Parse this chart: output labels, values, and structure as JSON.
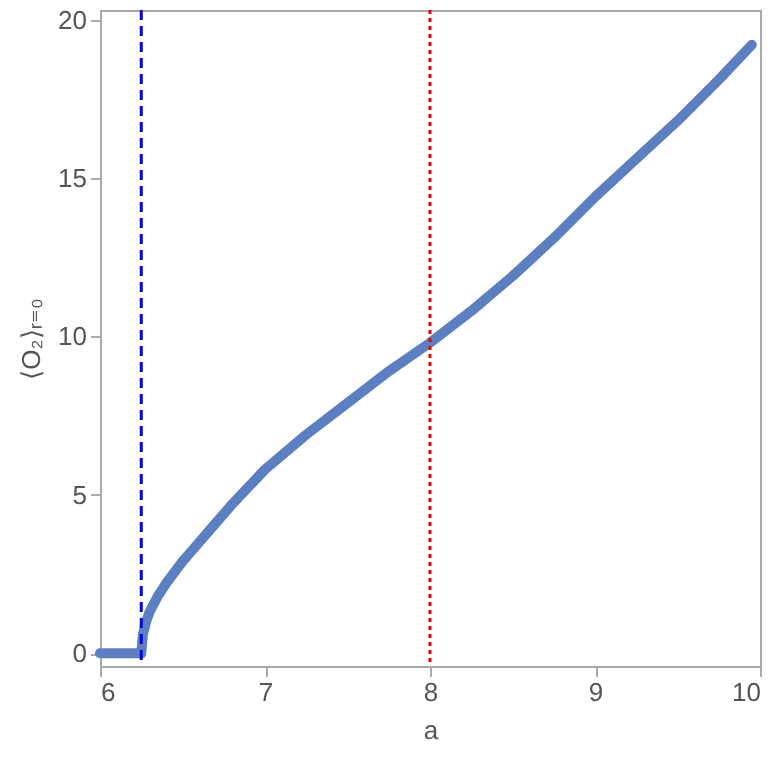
{
  "chart_data": {
    "type": "line",
    "xlabel": "a",
    "ylabel": "⟨O₂⟩ᵣ₌₀",
    "xlim": [
      6,
      10
    ],
    "xticks": [
      6,
      7,
      8,
      9,
      10
    ],
    "ylim": [
      -0.4,
      20.3
    ],
    "yticks": [
      0,
      5,
      10,
      15,
      20
    ],
    "grid": false,
    "marker": "none",
    "line_style": "solid",
    "series": [
      {
        "color": "#5b7fc0",
        "x": [
          6,
          6.1,
          6.2,
          6.25,
          6.26,
          6.28,
          6.3,
          6.35,
          6.4,
          6.5,
          6.6,
          6.7,
          6.8,
          7,
          7.25,
          7.5,
          7.75,
          8,
          8.25,
          8.5,
          8.75,
          9,
          9.25,
          9.5,
          9.75,
          9.95
        ],
        "values": [
          0,
          0,
          0,
          0,
          0.6,
          1.0,
          1.3,
          1.8,
          2.2,
          2.9,
          3.5,
          4.1,
          4.7,
          5.8,
          6.9,
          7.9,
          8.9,
          9.8,
          10.8,
          11.9,
          13.1,
          14.4,
          15.6,
          16.8,
          18.1,
          19.2
        ]
      }
    ],
    "ref_lines": [
      {
        "axis": "x",
        "value": 6.25,
        "color": "#0000ee",
        "line_style": "dashed"
      },
      {
        "axis": "x",
        "value": 8,
        "color": "#ee0000",
        "line_style": "dotted"
      }
    ]
  }
}
